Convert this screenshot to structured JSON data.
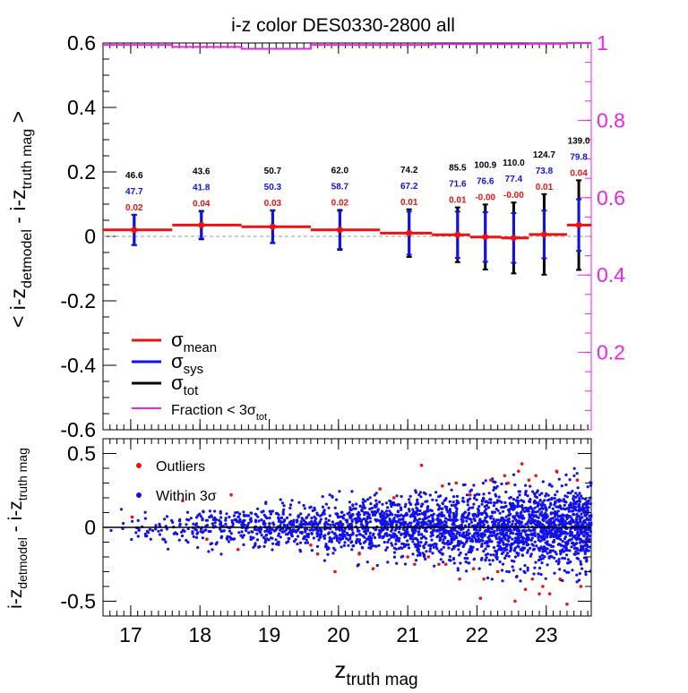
{
  "chart_data": [
    {
      "type": "bar",
      "panel": "top",
      "title": "i-z color DES0330-2800 all",
      "ylabel": "< i-z_detmodel - i-z_truth mag >",
      "ylim": [
        -0.6,
        0.6
      ],
      "xlim": [
        16.6,
        23.65
      ],
      "y_ticks": [
        "0.6",
        "0.4",
        "0.2",
        "0",
        "-0.2",
        "-0.4",
        "-0.6"
      ],
      "y2_ticks": [
        "1",
        "0.8",
        "0.6",
        "0.4",
        "0.2"
      ],
      "y2lim": [
        0.0,
        1.0
      ],
      "bins": [
        {
          "x_low": 16.6,
          "x_high": 17.6,
          "x_center": 17.05,
          "mean": 0.02,
          "sigma_sys": 0.047,
          "sigma_tot": 0.047,
          "label_tot": "46.6",
          "label_sys": "47.7",
          "label_mean": "0.02"
        },
        {
          "x_low": 17.6,
          "x_high": 18.6,
          "x_center": 18.02,
          "mean": 0.035,
          "sigma_sys": 0.042,
          "sigma_tot": 0.044,
          "label_tot": "43.6",
          "label_sys": "41.8",
          "label_mean": "0.04"
        },
        {
          "x_low": 18.6,
          "x_high": 19.6,
          "x_center": 19.05,
          "mean": 0.03,
          "sigma_sys": 0.05,
          "sigma_tot": 0.051,
          "label_tot": "50.7",
          "label_sys": "50.3",
          "label_mean": "0.03"
        },
        {
          "x_low": 19.6,
          "x_high": 20.6,
          "x_center": 20.02,
          "mean": 0.02,
          "sigma_sys": 0.059,
          "sigma_tot": 0.062,
          "label_tot": "62.0",
          "label_sys": "58.7",
          "label_mean": "0.02"
        },
        {
          "x_low": 20.6,
          "x_high": 21.35,
          "x_center": 21.02,
          "mean": 0.01,
          "sigma_sys": 0.067,
          "sigma_tot": 0.074,
          "label_tot": "74.2",
          "label_sys": "67.2",
          "label_mean": "0.01"
        },
        {
          "x_low": 21.35,
          "x_high": 21.9,
          "x_center": 21.72,
          "mean": 0.005,
          "sigma_sys": 0.072,
          "sigma_tot": 0.085,
          "label_tot": "85.5",
          "label_sys": "71.6",
          "label_mean": "0.01"
        },
        {
          "x_low": 21.9,
          "x_high": 22.35,
          "x_center": 22.12,
          "mean": -0.002,
          "sigma_sys": 0.077,
          "sigma_tot": 0.101,
          "label_tot": "100.9",
          "label_sys": "76.6",
          "label_mean": "-0.00"
        },
        {
          "x_low": 22.35,
          "x_high": 22.75,
          "x_center": 22.53,
          "mean": -0.005,
          "sigma_sys": 0.077,
          "sigma_tot": 0.11,
          "label_tot": "110.0",
          "label_sys": "77.4",
          "label_mean": "-0.00"
        },
        {
          "x_low": 22.75,
          "x_high": 23.3,
          "x_center": 22.97,
          "mean": 0.006,
          "sigma_sys": 0.074,
          "sigma_tot": 0.125,
          "label_tot": "124.7",
          "label_sys": "73.8",
          "label_mean": "0.01"
        },
        {
          "x_low": 23.3,
          "x_high": 23.65,
          "x_center": 23.47,
          "mean": 0.035,
          "sigma_sys": 0.08,
          "sigma_tot": 0.139,
          "label_tot": "139.0",
          "label_sys": "79.8",
          "label_mean": "0.04"
        }
      ],
      "fraction_steps": [
        {
          "x_low": 16.6,
          "x_high": 17.6,
          "value": 0.995
        },
        {
          "x_low": 17.6,
          "x_high": 18.6,
          "value": 0.99
        },
        {
          "x_low": 18.6,
          "x_high": 19.6,
          "value": 0.985
        },
        {
          "x_low": 19.6,
          "x_high": 20.6,
          "value": 0.995
        },
        {
          "x_low": 20.6,
          "x_high": 21.35,
          "value": 0.995
        },
        {
          "x_low": 21.35,
          "x_high": 21.9,
          "value": 0.997
        },
        {
          "x_low": 21.9,
          "x_high": 22.35,
          "value": 0.997
        },
        {
          "x_low": 22.35,
          "x_high": 22.75,
          "value": 0.997
        },
        {
          "x_low": 22.75,
          "x_high": 23.3,
          "value": 0.998
        },
        {
          "x_low": 23.3,
          "x_high": 23.65,
          "value": 1.0
        }
      ],
      "legend": {
        "position": "bottom-left",
        "entries": [
          {
            "main": "σ",
            "sub": "mean",
            "color": "#ee1111"
          },
          {
            "main": "σ",
            "sub": "sys",
            "color": "#1111ee"
          },
          {
            "main": "σ",
            "sub": "tot",
            "color": "#000000"
          },
          {
            "main": "Fraction < 3σ",
            "sub": "tot",
            "color": "#ee22ee"
          }
        ]
      },
      "colors": {
        "mean": "#ee1111",
        "sys": "#1111ee",
        "tot": "#000000",
        "fraction": "#ee22ee",
        "zero_line": "#999999"
      }
    },
    {
      "type": "scatter",
      "panel": "bottom",
      "xlabel": "z_truth mag",
      "ylabel": "i-z_detmodel - i-z_truth mag",
      "ylim": [
        -0.6,
        0.6
      ],
      "xlim": [
        16.6,
        23.65
      ],
      "x_ticks": [
        "17",
        "18",
        "19",
        "20",
        "21",
        "22",
        "23"
      ],
      "y_ticks": [
        "0.5",
        "0",
        "-0.5"
      ],
      "legend": {
        "position": "top-left",
        "entries": [
          {
            "label": "Outliers",
            "color": "#ee1111"
          },
          {
            "label": "Within 3σ",
            "color": "#1111ee"
          }
        ]
      },
      "outliers": [
        [
          17.02,
          0.07
        ],
        [
          17.75,
          0.18
        ],
        [
          18.1,
          -0.08
        ],
        [
          18.45,
          0.22
        ],
        [
          18.55,
          -0.15
        ],
        [
          19.6,
          -0.12
        ],
        [
          19.7,
          -0.18
        ],
        [
          19.95,
          -0.3
        ],
        [
          20.3,
          -0.18
        ],
        [
          20.5,
          -0.28
        ],
        [
          20.6,
          0.26
        ],
        [
          20.8,
          0.2
        ],
        [
          21.0,
          -0.2
        ],
        [
          21.1,
          -0.25
        ],
        [
          21.2,
          0.42
        ],
        [
          21.3,
          -0.2
        ],
        [
          21.45,
          -0.25
        ],
        [
          21.5,
          0.28
        ],
        [
          21.55,
          -0.25
        ],
        [
          21.7,
          0.3
        ],
        [
          21.75,
          -0.35
        ],
        [
          21.9,
          0.22
        ],
        [
          21.95,
          -0.28
        ],
        [
          22.05,
          -0.48
        ],
        [
          22.1,
          -0.35
        ],
        [
          22.2,
          0.32
        ],
        [
          22.3,
          -0.3
        ],
        [
          22.4,
          0.35
        ],
        [
          22.45,
          0.3
        ],
        [
          22.55,
          -0.5
        ],
        [
          22.6,
          0.38
        ],
        [
          22.65,
          0.43
        ],
        [
          22.7,
          -0.42
        ],
        [
          22.75,
          0.32
        ],
        [
          22.8,
          -0.35
        ],
        [
          22.85,
          0.35
        ],
        [
          22.9,
          -0.45
        ],
        [
          22.95,
          -0.4
        ],
        [
          23.05,
          -0.45
        ],
        [
          23.15,
          0.38
        ],
        [
          23.2,
          -0.35
        ],
        [
          23.3,
          -0.52
        ],
        [
          23.45,
          0.32
        ],
        [
          23.5,
          -0.4
        ]
      ],
      "within_3sigma": {
        "count": 2800,
        "x_range": [
          16.6,
          23.65
        ],
        "sigma_at_17": 0.05,
        "sigma_at_23.5": 0.14
      }
    }
  ]
}
